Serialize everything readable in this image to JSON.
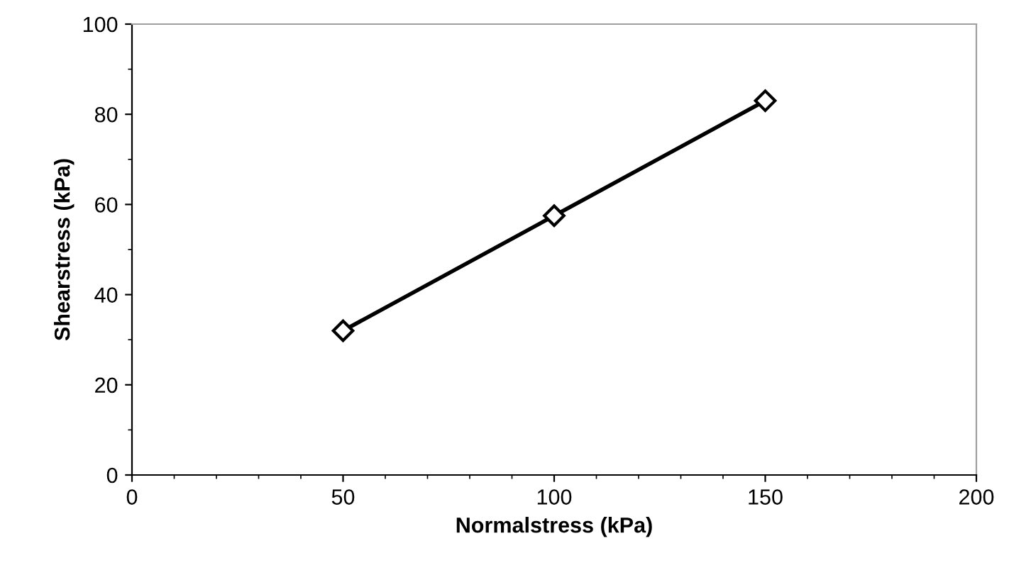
{
  "chart_data": {
    "type": "line",
    "xlabel": "Normalstress (kPa)",
    "ylabel": "Shearstress (kPa)",
    "x": [
      50,
      100,
      150
    ],
    "series": [
      {
        "color": "#000000",
        "values": [
          32,
          57.5,
          83
        ]
      }
    ],
    "marker": "diamond",
    "line_style": "solid",
    "xlim": [
      0,
      200
    ],
    "xticks": [
      0,
      50,
      100,
      150,
      200
    ],
    "ylim": [
      0,
      100
    ],
    "yticks": [
      0,
      20,
      40,
      60,
      80,
      100
    ],
    "grid": false
  }
}
